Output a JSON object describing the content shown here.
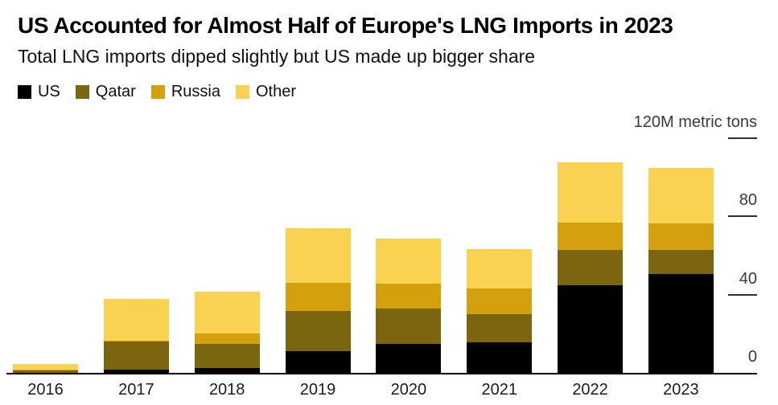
{
  "chart_data": {
    "type": "bar",
    "stacked": true,
    "title": "US Accounted for Almost Half of Europe's LNG Imports in 2023",
    "subtitle": "Total LNG imports dipped slightly but US made up bigger share",
    "unit_label": "120M metric tons",
    "ylabel": "M metric tons",
    "categories": [
      "2016",
      "2017",
      "2018",
      "2019",
      "2020",
      "2021",
      "2022",
      "2023"
    ],
    "series": [
      {
        "name": "US",
        "color": "#000000",
        "values": [
          0.2,
          1.5,
          2.5,
          11.0,
          15.0,
          15.5,
          45.0,
          50.5
        ]
      },
      {
        "name": "Qatar",
        "color": "#7b650f",
        "values": [
          1.0,
          14.5,
          12.5,
          20.5,
          18.0,
          14.5,
          18.0,
          12.5
        ]
      },
      {
        "name": "Russia",
        "color": "#d4a00d",
        "values": [
          0.3,
          0.5,
          5.0,
          14.5,
          12.5,
          13.0,
          14.0,
          13.5
        ]
      },
      {
        "name": "Other",
        "color": "#fad251",
        "values": [
          3.0,
          21.5,
          21.5,
          28.0,
          23.0,
          20.5,
          30.5,
          28.5
        ]
      }
    ],
    "totals": [
      4.5,
      38.0,
      41.5,
      74.0,
      68.5,
      63.5,
      107.5,
      105.0
    ],
    "ylim": [
      0,
      120
    ],
    "yticks": [
      0,
      40,
      80
    ],
    "ytick_unit_value": 120,
    "grid": false,
    "legend_position": "top-left"
  },
  "colors": {
    "background": "#ffffff",
    "axis_line": "#000000",
    "tick_dash": "#2f2f2f",
    "tick_text": "#3a3a3a",
    "year_text": "#1c1c1c"
  }
}
